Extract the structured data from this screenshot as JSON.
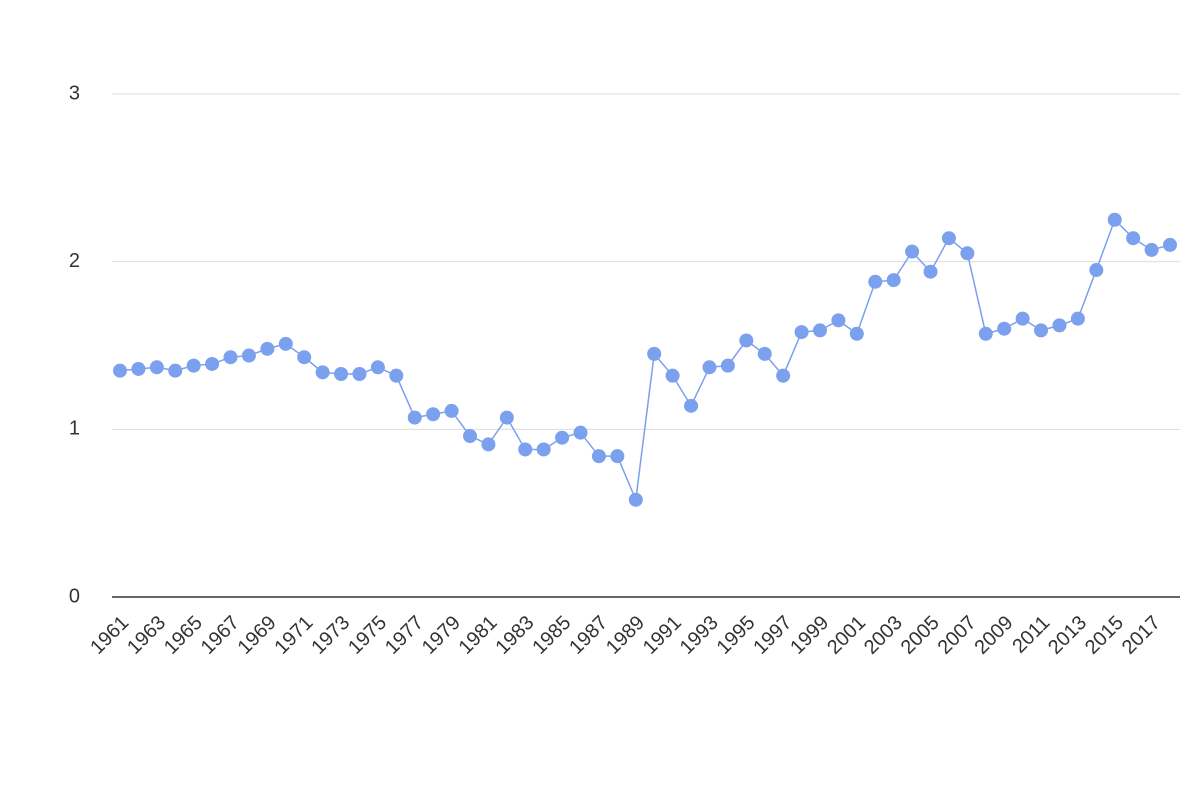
{
  "chart_data": {
    "type": "line",
    "x": [
      1961,
      1962,
      1963,
      1964,
      1965,
      1966,
      1967,
      1968,
      1969,
      1970,
      1971,
      1972,
      1973,
      1974,
      1975,
      1976,
      1977,
      1978,
      1979,
      1980,
      1981,
      1982,
      1983,
      1984,
      1985,
      1986,
      1987,
      1988,
      1989,
      1990,
      1991,
      1992,
      1993,
      1994,
      1995,
      1996,
      1997,
      1998,
      1999,
      2000,
      2001,
      2002,
      2003,
      2004,
      2005,
      2006,
      2007,
      2008,
      2009,
      2010,
      2011,
      2012,
      2013,
      2014,
      2015,
      2016,
      2017,
      2018
    ],
    "series": [
      {
        "color": "#7ba0ee",
        "values": [
          1.35,
          1.36,
          1.37,
          1.35,
          1.38,
          1.39,
          1.43,
          1.44,
          1.48,
          1.51,
          1.43,
          1.34,
          1.33,
          1.33,
          1.37,
          1.32,
          1.07,
          1.09,
          1.11,
          0.96,
          0.91,
          1.07,
          0.88,
          0.88,
          0.95,
          0.98,
          0.84,
          0.84,
          0.58,
          1.45,
          1.32,
          1.14,
          1.37,
          1.38,
          1.53,
          1.45,
          1.32,
          1.58,
          1.59,
          1.65,
          1.57,
          1.88,
          1.89,
          2.06,
          1.94,
          2.14,
          2.05,
          1.57,
          1.6,
          1.66,
          1.59,
          1.62,
          1.66,
          1.95,
          2.25,
          2.14,
          2.07,
          2.1
        ]
      }
    ],
    "xlim": [
      1961,
      2018
    ],
    "xticks": [
      1961,
      1963,
      1965,
      1967,
      1969,
      1971,
      1973,
      1975,
      1977,
      1979,
      1981,
      1983,
      1985,
      1987,
      1989,
      1991,
      1993,
      1995,
      1997,
      1999,
      2001,
      2003,
      2005,
      2007,
      2009,
      2011,
      2013,
      2015,
      2017
    ],
    "ylim": [
      0,
      3
    ],
    "yticks": [
      0,
      1,
      2,
      3
    ],
    "grid": true
  }
}
